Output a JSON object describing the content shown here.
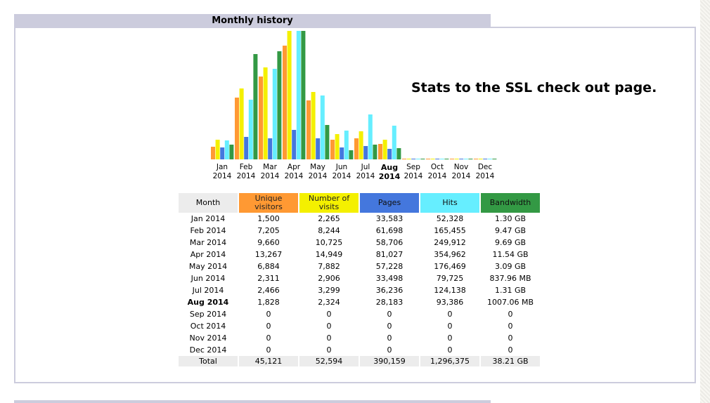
{
  "section": {
    "title": "Monthly history"
  },
  "note": "Stats to the SSL check out page.",
  "colors": {
    "unique_visitors": "#ff9933",
    "visits": "#f4f000",
    "pages": "#4477dd",
    "hits": "#66eeff",
    "bandwidth": "#339944"
  },
  "table": {
    "headers": {
      "month": "Month",
      "unique_visitors": "Unique visitors",
      "visits": "Number of visits",
      "pages": "Pages",
      "hits": "Hits",
      "bandwidth": "Bandwidth"
    },
    "rows": [
      {
        "month": "Jan 2014",
        "uv": "1,500",
        "visits": "2,265",
        "pages": "33,583",
        "hits": "52,328",
        "bw": "1.30 GB"
      },
      {
        "month": "Feb 2014",
        "uv": "7,205",
        "visits": "8,244",
        "pages": "61,698",
        "hits": "165,455",
        "bw": "9.47 GB"
      },
      {
        "month": "Mar 2014",
        "uv": "9,660",
        "visits": "10,725",
        "pages": "58,706",
        "hits": "249,912",
        "bw": "9.69 GB"
      },
      {
        "month": "Apr 2014",
        "uv": "13,267",
        "visits": "14,949",
        "pages": "81,027",
        "hits": "354,962",
        "bw": "11.54 GB"
      },
      {
        "month": "May 2014",
        "uv": "6,884",
        "visits": "7,882",
        "pages": "57,228",
        "hits": "176,469",
        "bw": "3.09 GB"
      },
      {
        "month": "Jun 2014",
        "uv": "2,311",
        "visits": "2,906",
        "pages": "33,498",
        "hits": "79,725",
        "bw": "837.96 MB"
      },
      {
        "month": "Jul 2014",
        "uv": "2,466",
        "visits": "3,299",
        "pages": "36,236",
        "hits": "124,138",
        "bw": "1.31 GB"
      },
      {
        "month": "Aug 2014",
        "uv": "1,828",
        "visits": "2,324",
        "pages": "28,183",
        "hits": "93,386",
        "bw": "1007.06 MB"
      },
      {
        "month": "Sep 2014",
        "uv": "0",
        "visits": "0",
        "pages": "0",
        "hits": "0",
        "bw": "0"
      },
      {
        "month": "Oct 2014",
        "uv": "0",
        "visits": "0",
        "pages": "0",
        "hits": "0",
        "bw": "0"
      },
      {
        "month": "Nov 2014",
        "uv": "0",
        "visits": "0",
        "pages": "0",
        "hits": "0",
        "bw": "0"
      },
      {
        "month": "Dec 2014",
        "uv": "0",
        "visits": "0",
        "pages": "0",
        "hits": "0",
        "bw": "0"
      }
    ],
    "total": {
      "label": "Total",
      "uv": "45,121",
      "visits": "52,594",
      "pages": "390,159",
      "hits": "1,296,375",
      "bw": "38.21 GB"
    }
  },
  "chart_data": {
    "type": "bar",
    "categories": [
      {
        "month": "Jan",
        "year": "2014"
      },
      {
        "month": "Feb",
        "year": "2014"
      },
      {
        "month": "Mar",
        "year": "2014"
      },
      {
        "month": "Apr",
        "year": "2014"
      },
      {
        "month": "May",
        "year": "2014"
      },
      {
        "month": "Jun",
        "year": "2014"
      },
      {
        "month": "Jul",
        "year": "2014"
      },
      {
        "month": "Aug",
        "year": "2014"
      },
      {
        "month": "Sep",
        "year": "2014"
      },
      {
        "month": "Oct",
        "year": "2014"
      },
      {
        "month": "Nov",
        "year": "2014"
      },
      {
        "month": "Dec",
        "year": "2014"
      }
    ],
    "current_month_index": 7,
    "series": [
      {
        "name": "Unique visitors",
        "color": "#ff9933",
        "values": [
          1500,
          7205,
          9660,
          13267,
          6884,
          2311,
          2466,
          1828,
          0,
          0,
          0,
          0
        ]
      },
      {
        "name": "Number of visits",
        "color": "#f4f000",
        "values": [
          2265,
          8244,
          10725,
          14949,
          7882,
          2906,
          3299,
          2324,
          0,
          0,
          0,
          0
        ]
      },
      {
        "name": "Pages",
        "color": "#4477dd",
        "values": [
          33583,
          61698,
          58706,
          81027,
          57228,
          33498,
          36236,
          28183,
          0,
          0,
          0,
          0
        ]
      },
      {
        "name": "Hits",
        "color": "#66eeff",
        "values": [
          52328,
          165455,
          249912,
          354962,
          176469,
          79725,
          124138,
          93386,
          0,
          0,
          0,
          0
        ]
      },
      {
        "name": "Bandwidth",
        "color": "#339944",
        "values": [
          1.3,
          9.47,
          9.69,
          11.54,
          3.09,
          0.82,
          1.31,
          0.98,
          0,
          0,
          0,
          0
        ],
        "unit": "GB"
      }
    ],
    "scaling": "visits and unique visitors share one scale; pages and hits share one scale; bandwidth has its own scale"
  }
}
